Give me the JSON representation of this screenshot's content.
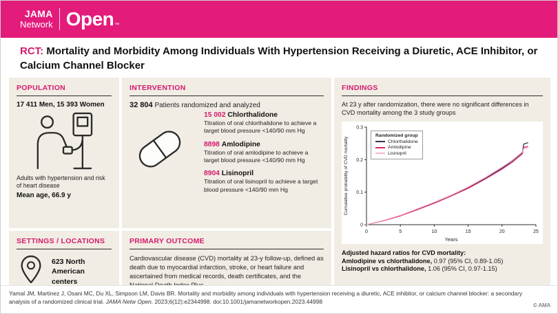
{
  "header": {
    "brand_top": "JAMA",
    "brand_bottom": "Network",
    "brand_open": "Open",
    "trademark": "™"
  },
  "title": {
    "tag": "RCT:",
    "text": "Mortality and Morbidity Among Individuals With Hypertension Receiving a Diuretic, ACE Inhibitor, or Calcium Channel Blocker"
  },
  "population": {
    "heading": "POPULATION",
    "counts": "17 411 Men, 15 393 Women",
    "description": "Adults with hypertension and risk of heart disease",
    "mean_age": "Mean age, 66.9 y"
  },
  "intervention": {
    "heading": "INTERVENTION",
    "total_n": "32 804",
    "total_label": "Patients randomized and analyzed",
    "arms": [
      {
        "n": "15 002",
        "name": "Chlorthalidone",
        "description": "Titration of oral chlorthalidone to achieve a target blood pressure <140/90 mm Hg"
      },
      {
        "n": "8898",
        "name": "Amlodipine",
        "description": "Titration of oral amlodipine to achieve a target blood pressure <140/90 mm Hg"
      },
      {
        "n": "8904",
        "name": "Lisinopril",
        "description": "Titration of oral lisinopril to achieve a target blood pressure <140/90 mm Hg"
      }
    ]
  },
  "settings": {
    "heading": "SETTINGS / LOCATIONS",
    "count": "623",
    "label": "North American centers"
  },
  "outcome": {
    "heading": "PRIMARY OUTCOME",
    "text": "Cardiovascular disease (CVD) mortality at 23-y follow-up, defined as death due to myocardial infarction, stroke, or heart failure and ascertained from medical records, death certificates, and the National Death Index Plus"
  },
  "findings": {
    "heading": "FINDINGS",
    "summary": "At 23 y after randomization, there were no significant differences in CVD mortality among the 3 study groups",
    "hazard_title": "Adjusted hazard ratios for CVD mortality:",
    "hazard_ratios": [
      {
        "comparison": "Amlodipine vs chlorthalidone,",
        "value": "0.97 (95% CI, 0.89-1.05)"
      },
      {
        "comparison": "Lisinopril vs chlorthalidone,",
        "value": "1.06 (95% CI, 0.97-1.15)"
      }
    ]
  },
  "chart_data": {
    "type": "line",
    "legend_title": "Randomized group",
    "xlabel": "Years",
    "ylabel": "Cumulative probability of CVD mortality",
    "xlim": [
      0,
      25
    ],
    "ylim": [
      0,
      0.3
    ],
    "xticks": [
      0,
      5,
      10,
      15,
      20,
      25
    ],
    "yticks": [
      0,
      0.1,
      0.2,
      0.3
    ],
    "grid": false,
    "legend_position": "upper-left",
    "x": [
      0,
      2.5,
      5,
      7.5,
      10,
      12.5,
      15,
      17.5,
      20,
      21.5,
      23,
      23.2,
      23.8
    ],
    "series": [
      {
        "name": "Chlorthalidone",
        "color": "#33334d",
        "values": [
          0,
          0.012,
          0.028,
          0.047,
          0.067,
          0.089,
          0.114,
          0.142,
          0.174,
          0.196,
          0.222,
          0.248,
          0.252
        ]
      },
      {
        "name": "Amlodipine",
        "color": "#d6246e",
        "values": [
          0,
          0.012,
          0.027,
          0.046,
          0.066,
          0.088,
          0.112,
          0.14,
          0.171,
          0.192,
          0.218,
          0.238,
          0.24
        ]
      },
      {
        "name": "Lisinopril",
        "color": "#f3b3cd",
        "values": [
          0,
          0.013,
          0.029,
          0.049,
          0.069,
          0.091,
          0.116,
          0.145,
          0.177,
          0.198,
          0.224,
          0.234,
          0.236
        ]
      }
    ]
  },
  "footer": {
    "citation_part1": "Yamal JM, Martinez J, Osani MC, Du XL, Simpson LM, Davis BR. Mortality and morbidity among individuals with hypertension receiving a diuretic, ACE inhibitor, or calcium channel blocker: a secondary analysis of a randomized clinical trial. ",
    "citation_journal": "JAMA Netw Open.",
    "citation_part2": " 2023;6(12):e2344998. doi:10.1001/jamanetworkopen.2023.44998",
    "copyright": "© AMA"
  },
  "colors": {
    "brand_pink": "#e31b7b",
    "accent_pink": "#d4196d",
    "panel_beige": "#f1ede4"
  }
}
